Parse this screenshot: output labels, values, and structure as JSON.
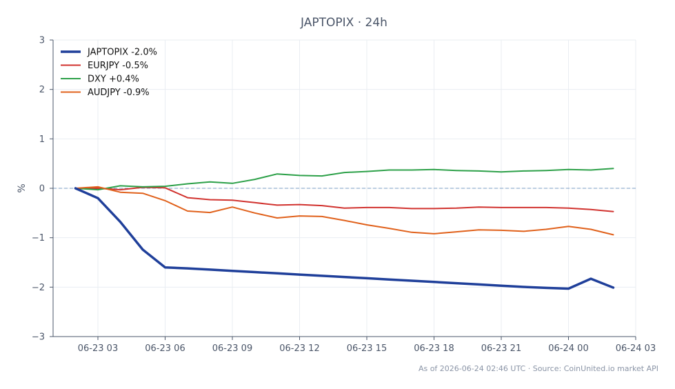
{
  "chart_data": {
    "type": "line",
    "title": "JAPTOPIX · 24h",
    "ylabel": "%",
    "xlabel": "",
    "ylim": [
      -3,
      3
    ],
    "yticks": [
      3,
      2,
      1,
      0,
      -1,
      -2,
      -3
    ],
    "ytick_labels": [
      "3",
      "2",
      "1",
      "0",
      "−1",
      "−2",
      "−3"
    ],
    "xlim": [
      "2026-06-23 01:00",
      "2026-06-24 03:00"
    ],
    "xticks": [
      "2026-06-23 03:00",
      "2026-06-23 06:00",
      "2026-06-23 09:00",
      "2026-06-23 12:00",
      "2026-06-23 15:00",
      "2026-06-23 18:00",
      "2026-06-23 21:00",
      "2026-06-24 00:00",
      "2026-06-24 03:00"
    ],
    "xtick_labels": [
      "06-23 03",
      "06-23 06",
      "06-23 09",
      "06-23 12",
      "06-23 15",
      "06-23 18",
      "06-23 21",
      "06-24 00",
      "06-24 03"
    ],
    "grid": true,
    "baseline": 0,
    "legend_position": "top-left",
    "x": [
      "2026-06-23 02:00",
      "2026-06-23 03:00",
      "2026-06-23 04:00",
      "2026-06-23 05:00",
      "2026-06-23 06:00",
      "2026-06-23 07:00",
      "2026-06-23 08:00",
      "2026-06-23 09:00",
      "2026-06-23 10:00",
      "2026-06-23 11:00",
      "2026-06-23 12:00",
      "2026-06-23 13:00",
      "2026-06-23 14:00",
      "2026-06-23 15:00",
      "2026-06-23 16:00",
      "2026-06-23 17:00",
      "2026-06-23 18:00",
      "2026-06-23 19:00",
      "2026-06-23 20:00",
      "2026-06-23 21:00",
      "2026-06-23 22:00",
      "2026-06-23 23:00",
      "2026-06-24 00:00",
      "2026-06-24 01:00",
      "2026-06-24 02:00"
    ],
    "series": [
      {
        "name": "JAPTOPIX -2.0%",
        "color": "#1f3f9a",
        "width": 3.5,
        "values": [
          0.0,
          -0.2,
          -0.68,
          -1.24,
          -1.6,
          -1.62,
          -1.645,
          -1.67,
          -1.695,
          -1.72,
          -1.745,
          -1.77,
          -1.795,
          -1.82,
          -1.845,
          -1.87,
          -1.895,
          -1.92,
          -1.945,
          -1.97,
          -1.995,
          -2.015,
          -2.03,
          -1.83,
          -2.01
        ]
      },
      {
        "name": "EURJPY -0.5%",
        "color": "#d1322e",
        "width": 2,
        "values": [
          0.0,
          0.0,
          -0.03,
          0.02,
          0.01,
          -0.19,
          -0.23,
          -0.24,
          -0.29,
          -0.34,
          -0.33,
          -0.35,
          -0.4,
          -0.39,
          -0.39,
          -0.41,
          -0.41,
          -0.4,
          -0.38,
          -0.39,
          -0.39,
          -0.39,
          -0.4,
          -0.43,
          -0.47
        ]
      },
      {
        "name": "DXY +0.4%",
        "color": "#2ca048",
        "width": 2,
        "values": [
          0.0,
          -0.03,
          0.05,
          0.03,
          0.04,
          0.09,
          0.13,
          0.1,
          0.18,
          0.29,
          0.26,
          0.25,
          0.32,
          0.34,
          0.37,
          0.37,
          0.38,
          0.36,
          0.35,
          0.33,
          0.35,
          0.36,
          0.38,
          0.37,
          0.4
        ]
      },
      {
        "name": "AUDJPY -0.9%",
        "color": "#e0601a",
        "width": 2,
        "values": [
          0.0,
          0.03,
          -0.08,
          -0.1,
          -0.25,
          -0.46,
          -0.49,
          -0.38,
          -0.5,
          -0.6,
          -0.56,
          -0.57,
          -0.65,
          -0.74,
          -0.81,
          -0.89,
          -0.92,
          -0.88,
          -0.84,
          -0.85,
          -0.87,
          -0.83,
          -0.77,
          -0.83,
          -0.94
        ]
      }
    ],
    "footer": "As of 2026-06-24 02:46 UTC · Source: CoinUnited.io market API",
    "colors": {
      "axis": "#4a5568",
      "grid": "#e9edf2",
      "baseline": "#7a9cc6",
      "text": "#4a5568"
    }
  }
}
